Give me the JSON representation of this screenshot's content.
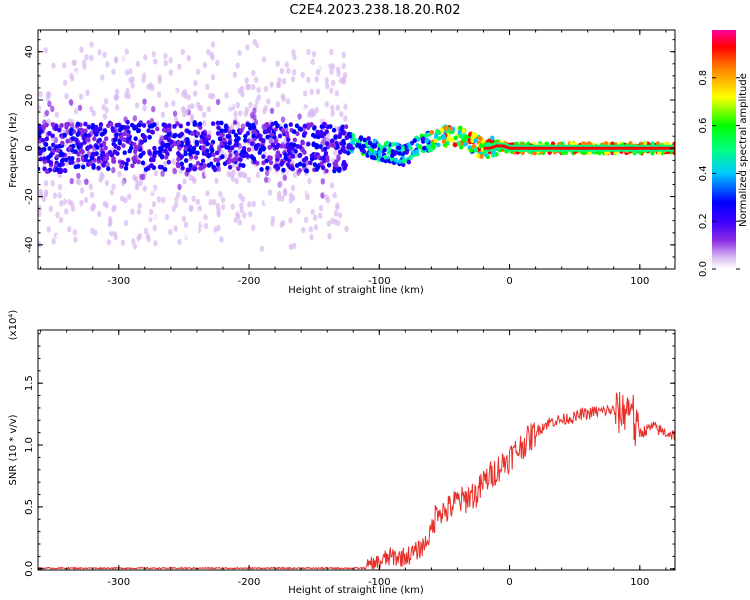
{
  "title": "C2E4.2023.238.18.20.R02",
  "chart_data": [
    {
      "type": "heatmap",
      "title": "C2E4.2023.238.18.20.R02",
      "xlabel": "Height of straight line (km)",
      "ylabel": "Frequency (Hz)",
      "xlim": [
        -362,
        127
      ],
      "ylim": [
        -50,
        49
      ],
      "xticks": [
        -300,
        -200,
        -100,
        0,
        100
      ],
      "xtick_labels": [
        "-300",
        "-200",
        "-100",
        "0",
        "100"
      ],
      "yticks": [
        -40,
        -20,
        0,
        20,
        40
      ],
      "ytick_labels": [
        "-40",
        "-20",
        "0",
        "20",
        "40"
      ],
      "colorbar": {
        "label": "Normalized spectral amplitude",
        "range": [
          0,
          1
        ],
        "ticks": [
          0.0,
          0.2,
          0.4,
          0.6,
          0.8
        ],
        "tick_labels": [
          "0.0",
          "0.2",
          "0.4",
          "0.6",
          "0.8"
        ],
        "colors": [
          "#ffffff",
          "#d8b8f0",
          "#8a2be2",
          "#3a00ff",
          "#0000ff",
          "#00c8ff",
          "#00ff80",
          "#00ff00",
          "#ffff00",
          "#ff8000",
          "#ff0000",
          "#ff00a0"
        ]
      },
      "ridge": {
        "x": [
          -362,
          -300,
          -200,
          -130,
          -120,
          -110,
          -100,
          -90,
          -80,
          -75,
          -70,
          -65,
          -60,
          -50,
          -40,
          -35,
          -30,
          -25,
          -20,
          -15,
          -10,
          -5,
          0,
          50,
          90,
          95,
          100,
          127
        ],
        "y": [
          0,
          1,
          1,
          0,
          3,
          1,
          -1,
          -2,
          -3,
          -1,
          2,
          3,
          3,
          5,
          5,
          4,
          3,
          1,
          0,
          0,
          1,
          1,
          0,
          0,
          0,
          0,
          0,
          0
        ]
      }
    },
    {
      "type": "line",
      "title": "",
      "xlabel": "Height of straight line (km)",
      "ylabel": "SNR (10 * v/v)",
      "y_multiplier": "(x10⁴)",
      "xlim": [
        -362,
        127
      ],
      "ylim": [
        -0.01,
        1.93
      ],
      "xticks": [
        -300,
        -200,
        -100,
        0,
        100
      ],
      "xtick_labels": [
        "-300",
        "-200",
        "-100",
        "0",
        "100"
      ],
      "yticks": [
        0.0,
        0.5,
        1.0,
        1.5
      ],
      "ytick_labels": [
        "0.0",
        "0.5",
        "1.0",
        "1.5"
      ],
      "color": "#e8302a",
      "series": [
        {
          "x": [
            -362,
            -300,
            -200,
            -110,
            -105,
            -100,
            -95,
            -90,
            -85,
            -80,
            -75,
            -70,
            -65,
            -60,
            -55,
            -50,
            -45,
            -40,
            -35,
            -30,
            -25,
            -20,
            -15,
            -10,
            -5,
            0,
            5,
            10,
            15,
            20,
            25,
            30,
            35,
            40,
            45,
            50,
            55,
            60,
            65,
            70,
            75,
            80,
            85,
            90,
            92,
            94,
            96,
            98,
            100,
            105,
            110,
            115,
            120,
            127
          ],
          "y": [
            0.005,
            0.005,
            0.005,
            0.005,
            0.02,
            0.05,
            0.08,
            0.1,
            0.09,
            0.1,
            0.12,
            0.15,
            0.2,
            0.3,
            0.5,
            0.45,
            0.5,
            0.55,
            0.55,
            0.6,
            0.6,
            0.7,
            0.75,
            0.8,
            0.85,
            0.9,
            0.95,
            1.0,
            1.05,
            1.1,
            1.15,
            1.18,
            1.2,
            1.2,
            1.22,
            1.22,
            1.25,
            1.25,
            1.27,
            1.27,
            1.28,
            1.28,
            1.25,
            1.3,
            1.3,
            1.4,
            1.1,
            1.12,
            1.1,
            1.12,
            1.15,
            1.12,
            1.1,
            1.08
          ]
        }
      ]
    }
  ]
}
